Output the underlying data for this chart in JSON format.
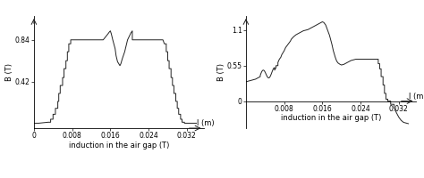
{
  "left_chart": {
    "ylabel": "B (T)",
    "xlabel": "induction in the air gap (T)",
    "xlim": [
      0,
      0.0355
    ],
    "ylim": [
      -0.05,
      1.08
    ],
    "xticks": [
      0,
      0.008,
      0.016,
      0.024,
      0.032
    ],
    "xtick_labels": [
      "0",
      "0.008",
      "0.016",
      "0.024",
      "0.032"
    ],
    "yticks": [
      0.42,
      0.84
    ],
    "ytick_labels": [
      "0.42",
      "0.84"
    ],
    "x_arrow_label": "l (m)"
  },
  "right_chart": {
    "ylabel": "B (T)",
    "xlabel": "induction in the air gap (T)",
    "xlim": [
      0,
      0.0355
    ],
    "ylim": [
      -0.42,
      1.32
    ],
    "xticks": [
      0.008,
      0.016,
      0.024,
      0.032
    ],
    "xtick_labels": [
      "0.008",
      "0.016",
      "0.024",
      "0.032"
    ],
    "yticks": [
      0,
      0.55,
      1.1
    ],
    "ytick_labels": [
      "0",
      "0.55",
      "1.1"
    ],
    "x_arrow_label": "l (m)"
  },
  "line_color": "#222222",
  "line_width": 0.7,
  "font_size": 6.0,
  "tick_font_size": 5.5
}
